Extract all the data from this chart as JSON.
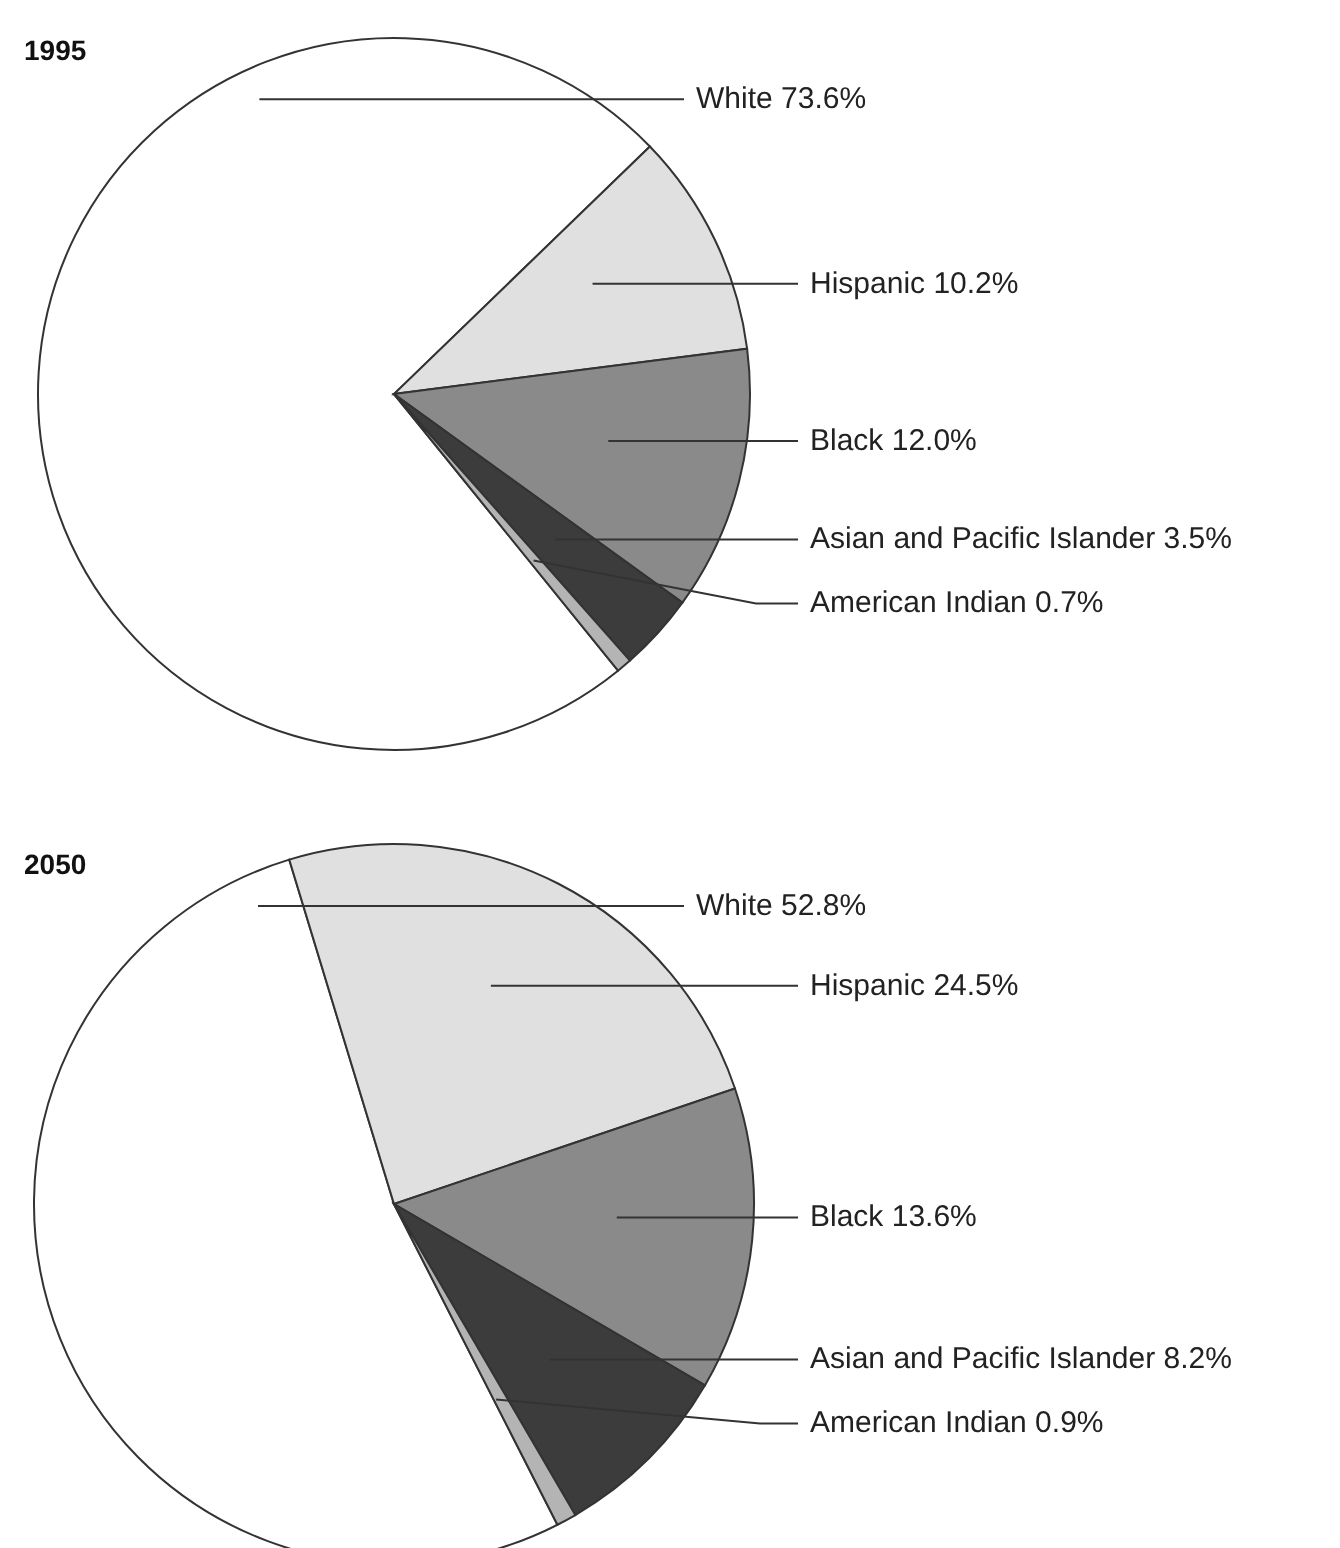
{
  "chart_data": [
    {
      "type": "pie",
      "title": "1995",
      "categories": [
        "White",
        "Hispanic",
        "Black",
        "Asian and Pacific Islander",
        "American Indian"
      ],
      "values": [
        73.6,
        10.2,
        12.0,
        3.5,
        0.7
      ],
      "value_labels": [
        "73.6%",
        "10.2%",
        "12.0%",
        "3.5%",
        "0.7%"
      ],
      "colors": [
        "#ffffff",
        "#e0e0e0",
        "#8a8a8a",
        "#3c3c3c",
        "#b4b4b4"
      ]
    },
    {
      "type": "pie",
      "title": "2050",
      "categories": [
        "White",
        "Hispanic",
        "Black",
        "Asian and Pacific Islander",
        "American Indian"
      ],
      "values": [
        52.8,
        24.5,
        13.6,
        8.2,
        0.9
      ],
      "value_labels": [
        "52.8%",
        "24.5%",
        "13.6%",
        "8.2%",
        "0.9%"
      ],
      "colors": [
        "#ffffff",
        "#e0e0e0",
        "#8a8a8a",
        "#3c3c3c",
        "#b4b4b4"
      ]
    }
  ]
}
